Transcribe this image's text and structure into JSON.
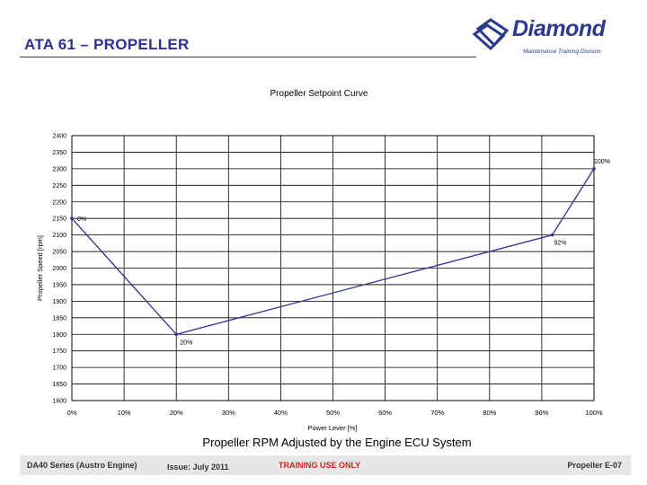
{
  "header": {
    "title": "ATA 61 – PROPELLER"
  },
  "logo": {
    "word": "Diamond",
    "subtitle": "Maintenance Training Division"
  },
  "caption": "Propeller RPM Adjusted by the Engine ECU System",
  "footer": {
    "left": "DA40 Series (Austro Engine)",
    "issue": "Issue: July 2011",
    "training": "TRAINING USE ONLY",
    "right": "Propeller E-07"
  },
  "chart_data": {
    "type": "line",
    "title": "Propeller Setpoint Curve",
    "xlabel": "Power Lever [%]",
    "ylabel": "Propeller Speed [rpm]",
    "xlim": [
      0,
      100
    ],
    "ylim": [
      1600,
      2400
    ],
    "x_ticks": [
      0,
      10,
      20,
      30,
      40,
      50,
      60,
      70,
      80,
      90,
      100
    ],
    "x_tick_labels": [
      "0%",
      "10%",
      "20%",
      "30%",
      "40%",
      "50%",
      "60%",
      "70%",
      "80%",
      "90%",
      "100%"
    ],
    "y_ticks": [
      1600,
      1650,
      1700,
      1750,
      1800,
      1850,
      1900,
      1950,
      2000,
      2050,
      2100,
      2150,
      2200,
      2250,
      2300,
      2350,
      2400
    ],
    "grid": true,
    "series": [
      {
        "color": "#2e3192",
        "points": [
          {
            "x": 0,
            "y": 2150,
            "label": "0%"
          },
          {
            "x": 20,
            "y": 1800,
            "label": "20%"
          },
          {
            "x": 92,
            "y": 2100,
            "label": "92%"
          },
          {
            "x": 100,
            "y": 2300,
            "label": "100%"
          }
        ]
      }
    ]
  }
}
